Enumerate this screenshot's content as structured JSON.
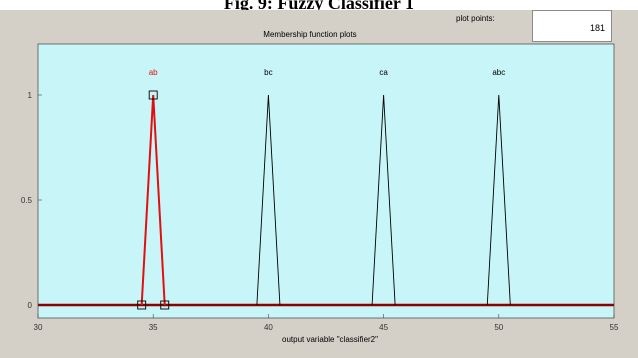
{
  "caption": "Fig. 9: Fuzzy Classifier 1",
  "panel": {
    "title": "Membership function plots",
    "plot_points_label": "plot points:",
    "plot_points_value": "181",
    "xlabel": "output variable \"classifier2\""
  },
  "colors": {
    "plot_bg": "#c8f5f7",
    "selected": "#e01010",
    "normal": "#000000",
    "baseline": "#8b0000",
    "window": "#d4d0c8"
  },
  "chart_data": {
    "type": "line",
    "title": "Membership function plots",
    "xlabel": "output variable \"classifier2\"",
    "xlim": [
      30,
      55
    ],
    "ylim": [
      0,
      1.15
    ],
    "xticks": [
      "30",
      "35",
      "40",
      "45",
      "50",
      "55"
    ],
    "yticks": [
      "0",
      "0.5",
      "1"
    ],
    "series": [
      {
        "name": "ab",
        "x": [
          34.5,
          35,
          35.5
        ],
        "y": [
          0,
          1,
          0
        ],
        "selected": true
      },
      {
        "name": "bc",
        "x": [
          39.5,
          40,
          40.5
        ],
        "y": [
          0,
          1,
          0
        ],
        "selected": false
      },
      {
        "name": "ca",
        "x": [
          44.5,
          45,
          45.5
        ],
        "y": [
          0,
          1,
          0
        ],
        "selected": false
      },
      {
        "name": "abc",
        "x": [
          49.5,
          50,
          50.5
        ],
        "y": [
          0,
          1,
          0
        ],
        "selected": false
      }
    ]
  }
}
